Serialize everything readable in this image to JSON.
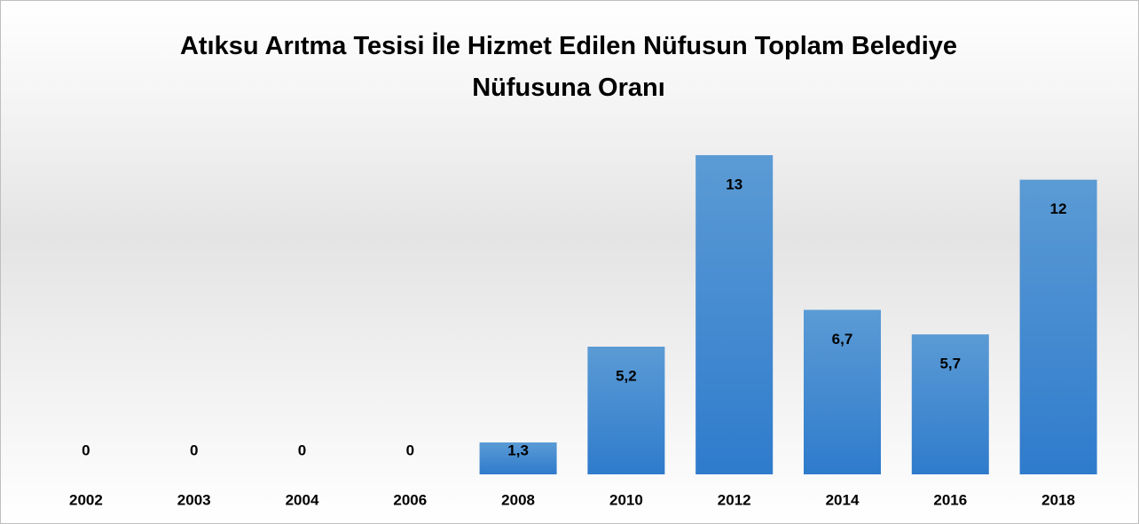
{
  "chart_data": {
    "type": "bar",
    "title": "Atıksu Arıtma Tesisi İle Hizmet Edilen Nüfusun Toplam Belediye Nüfusuna Oranı",
    "categories": [
      "2002",
      "2003",
      "2004",
      "2006",
      "2008",
      "2010",
      "2012",
      "2014",
      "2016",
      "2018"
    ],
    "values": [
      0,
      0,
      0,
      0,
      1.3,
      5.2,
      13,
      6.7,
      5.7,
      12
    ],
    "value_labels": [
      "0",
      "0",
      "0",
      "0",
      "1,3",
      "5,2",
      "13",
      "6,7",
      "5,7",
      "12"
    ],
    "color": "#5b9bd5"
  }
}
